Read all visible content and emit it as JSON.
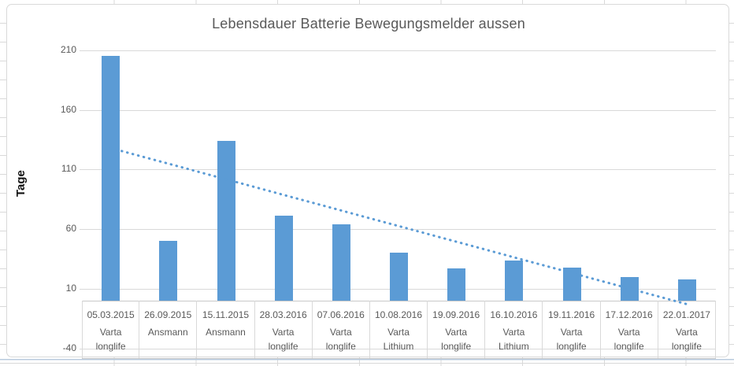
{
  "chart_data": {
    "type": "bar",
    "title": "Lebensdauer Batterie Bewegungsmelder aussen",
    "xlabel": "",
    "ylabel": "Tage",
    "ylim": [
      -47,
      223
    ],
    "yticks": [
      210,
      160,
      110,
      60,
      10,
      -40
    ],
    "grid": true,
    "legend": "none",
    "categories": [
      {
        "date": "05.03.2015",
        "type": "Varta\nlonglife"
      },
      {
        "date": "26.09.2015",
        "type": "Ansmann"
      },
      {
        "date": "15.11.2015",
        "type": "Ansmann"
      },
      {
        "date": "28.03.2016",
        "type": "Varta\nlonglife"
      },
      {
        "date": "07.06.2016",
        "type": "Varta\nlonglife"
      },
      {
        "date": "10.08.2016",
        "type": "Varta\nLithium"
      },
      {
        "date": "19.09.2016",
        "type": "Varta\nlonglife"
      },
      {
        "date": "16.10.2016",
        "type": "Varta\nLithium"
      },
      {
        "date": "19.11.2016",
        "type": "Varta\nlonglife"
      },
      {
        "date": "17.12.2016",
        "type": "Varta\nlonglife"
      },
      {
        "date": "22.01.2017",
        "type": "Varta\nlonglife"
      }
    ],
    "values": [
      205,
      50,
      134,
      71,
      64,
      40,
      27,
      34,
      28,
      20,
      18
    ],
    "trendline": {
      "style": "dotted",
      "start_value": 128,
      "end_value": -3
    }
  },
  "colors": {
    "bar": "#5b9bd5",
    "trend": "#5b9bd5",
    "grid_line": "#d9d9d9",
    "axis_text": "#595959",
    "title_text": "#595959",
    "pane_line": "#b9cbde"
  }
}
